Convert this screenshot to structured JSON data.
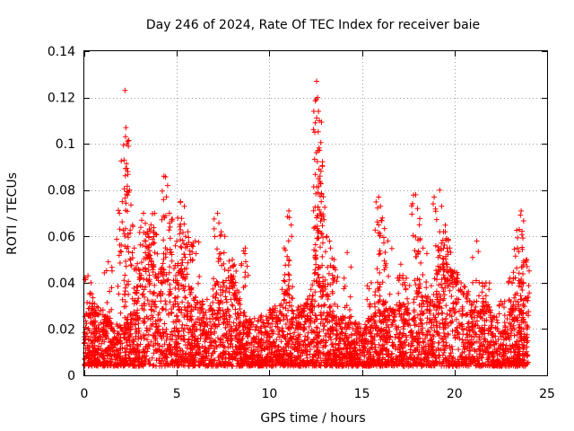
{
  "chart_data": {
    "type": "scatter",
    "title": "Day 246 of 2024, Rate Of TEC Index for receiver baie",
    "xlabel": "GPS time / hours",
    "ylabel": "ROTI / TECUs",
    "xlim": [
      0,
      25
    ],
    "ylim": [
      0,
      0.14
    ],
    "xticks": [
      0,
      5,
      10,
      15,
      20,
      25
    ],
    "yticks": [
      0,
      0.02,
      0.04,
      0.06,
      0.08,
      0.1,
      0.12,
      0.14
    ],
    "xtick_labels": [
      "0",
      "5",
      "10",
      "15",
      "20",
      "25"
    ],
    "ytick_labels": [
      "0",
      "0.02",
      "0.04",
      "0.06",
      "0.08",
      "0.1",
      "0.12",
      "0.14"
    ],
    "grid": true,
    "marker": "+",
    "color": "#ff0000",
    "series": [
      {
        "name": "ROTI",
        "baseline_envelope": [
          [
            0.0,
            0.022
          ],
          [
            0.5,
            0.028
          ],
          [
            1.0,
            0.025
          ],
          [
            1.5,
            0.02
          ],
          [
            2.0,
            0.018
          ],
          [
            2.5,
            0.022
          ],
          [
            3.0,
            0.045
          ],
          [
            3.5,
            0.05
          ],
          [
            4.0,
            0.04
          ],
          [
            4.5,
            0.055
          ],
          [
            5.0,
            0.045
          ],
          [
            5.5,
            0.04
          ],
          [
            6.0,
            0.03
          ],
          [
            6.5,
            0.028
          ],
          [
            7.0,
            0.035
          ],
          [
            7.5,
            0.04
          ],
          [
            8.0,
            0.038
          ],
          [
            8.5,
            0.025
          ],
          [
            9.0,
            0.02
          ],
          [
            9.5,
            0.022
          ],
          [
            10.0,
            0.025
          ],
          [
            10.5,
            0.028
          ],
          [
            11.0,
            0.035
          ],
          [
            11.5,
            0.025
          ],
          [
            12.0,
            0.03
          ],
          [
            12.5,
            0.04
          ],
          [
            13.0,
            0.035
          ],
          [
            13.5,
            0.025
          ],
          [
            14.0,
            0.022
          ],
          [
            14.5,
            0.02
          ],
          [
            15.0,
            0.02
          ],
          [
            15.5,
            0.022
          ],
          [
            16.0,
            0.03
          ],
          [
            16.5,
            0.025
          ],
          [
            17.0,
            0.03
          ],
          [
            17.5,
            0.025
          ],
          [
            18.0,
            0.035
          ],
          [
            18.5,
            0.03
          ],
          [
            19.0,
            0.04
          ],
          [
            19.5,
            0.045
          ],
          [
            20.0,
            0.04
          ],
          [
            20.5,
            0.035
          ],
          [
            21.0,
            0.03
          ],
          [
            21.5,
            0.03
          ],
          [
            22.0,
            0.025
          ],
          [
            22.5,
            0.02
          ],
          [
            23.0,
            0.025
          ],
          [
            23.5,
            0.035
          ],
          [
            24.0,
            0.03
          ]
        ],
        "spikes": [
          [
            0.2,
            0.043
          ],
          [
            0.3,
            0.035
          ],
          [
            1.3,
            0.049
          ],
          [
            1.9,
            0.07
          ],
          [
            2.05,
            0.075
          ],
          [
            2.15,
            0.093
          ],
          [
            2.2,
            0.123
          ],
          [
            2.25,
            0.107
          ],
          [
            2.3,
            0.1
          ],
          [
            2.35,
            0.088
          ],
          [
            2.45,
            0.08
          ],
          [
            2.7,
            0.055
          ],
          [
            3.2,
            0.07
          ],
          [
            3.4,
            0.062
          ],
          [
            3.6,
            0.065
          ],
          [
            3.8,
            0.07
          ],
          [
            4.3,
            0.086
          ],
          [
            4.5,
            0.082
          ],
          [
            4.6,
            0.07
          ],
          [
            5.05,
            0.068
          ],
          [
            5.2,
            0.075
          ],
          [
            5.4,
            0.073
          ],
          [
            5.6,
            0.062
          ],
          [
            6.0,
            0.058
          ],
          [
            7.2,
            0.07
          ],
          [
            7.4,
            0.062
          ],
          [
            8.0,
            0.05
          ],
          [
            8.2,
            0.045
          ],
          [
            8.7,
            0.055
          ],
          [
            10.8,
            0.055
          ],
          [
            11.05,
            0.071
          ],
          [
            11.2,
            0.06
          ],
          [
            12.55,
            0.127
          ],
          [
            12.6,
            0.12
          ],
          [
            12.65,
            0.114
          ],
          [
            12.7,
            0.11
          ],
          [
            12.62,
            0.097
          ],
          [
            12.68,
            0.089
          ],
          [
            12.75,
            0.083
          ],
          [
            12.8,
            0.075
          ],
          [
            12.58,
            0.069
          ],
          [
            13.1,
            0.06
          ],
          [
            13.3,
            0.055
          ],
          [
            13.5,
            0.05
          ],
          [
            14.2,
            0.053
          ],
          [
            15.5,
            0.04
          ],
          [
            15.9,
            0.077
          ],
          [
            16.0,
            0.073
          ],
          [
            16.1,
            0.068
          ],
          [
            16.4,
            0.058
          ],
          [
            17.1,
            0.048
          ],
          [
            17.4,
            0.042
          ],
          [
            17.9,
            0.078
          ],
          [
            18.0,
            0.072
          ],
          [
            18.1,
            0.065
          ],
          [
            18.3,
            0.055
          ],
          [
            18.9,
            0.077
          ],
          [
            19.2,
            0.08
          ],
          [
            19.3,
            0.073
          ],
          [
            19.5,
            0.062
          ],
          [
            19.6,
            0.055
          ],
          [
            20.0,
            0.045
          ],
          [
            21.2,
            0.058
          ],
          [
            21.7,
            0.04
          ],
          [
            22.5,
            0.032
          ],
          [
            23.0,
            0.042
          ],
          [
            23.4,
            0.055
          ],
          [
            23.5,
            0.063
          ],
          [
            23.6,
            0.071
          ],
          [
            23.9,
            0.05
          ]
        ]
      }
    ]
  }
}
